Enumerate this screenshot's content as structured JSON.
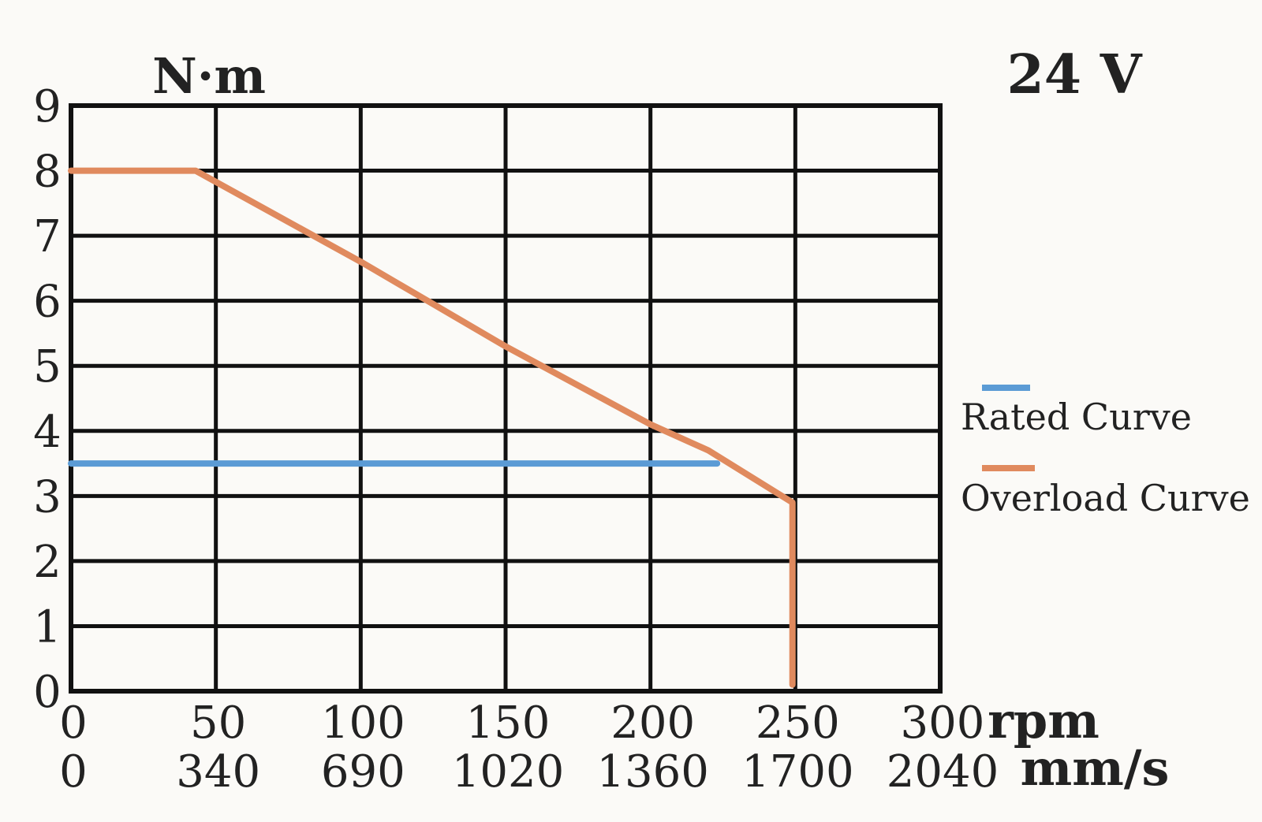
{
  "chart_data": {
    "type": "line",
    "title": "",
    "ylabel": "N·m",
    "voltage_label": "24 V",
    "ylim": [
      0,
      9
    ],
    "xlim": [
      0,
      300
    ],
    "y_ticks": [
      "0",
      "1",
      "2",
      "3",
      "4",
      "5",
      "6",
      "7",
      "8",
      "9"
    ],
    "x_ticks_rpm": [
      "0",
      "50",
      "100",
      "150",
      "200",
      "250",
      "300"
    ],
    "x_ticks_mms": [
      "0",
      "340",
      "690",
      "1020",
      "1360",
      "1700",
      "2040"
    ],
    "x_unit_rpm": "rpm",
    "x_unit_mms": "mm/s",
    "grid": true,
    "legend_position": "right",
    "series": [
      {
        "name": "Rated Curve",
        "color": "#5b9bd5",
        "x": [
          0,
          223
        ],
        "y": [
          3.5,
          3.5
        ]
      },
      {
        "name": "Overload Curve",
        "color": "#e08a5e",
        "x": [
          0,
          43,
          100,
          150,
          200,
          220,
          249,
          249
        ],
        "y": [
          8.0,
          8.0,
          6.6,
          5.3,
          4.1,
          3.7,
          2.9,
          0.1
        ]
      }
    ]
  }
}
